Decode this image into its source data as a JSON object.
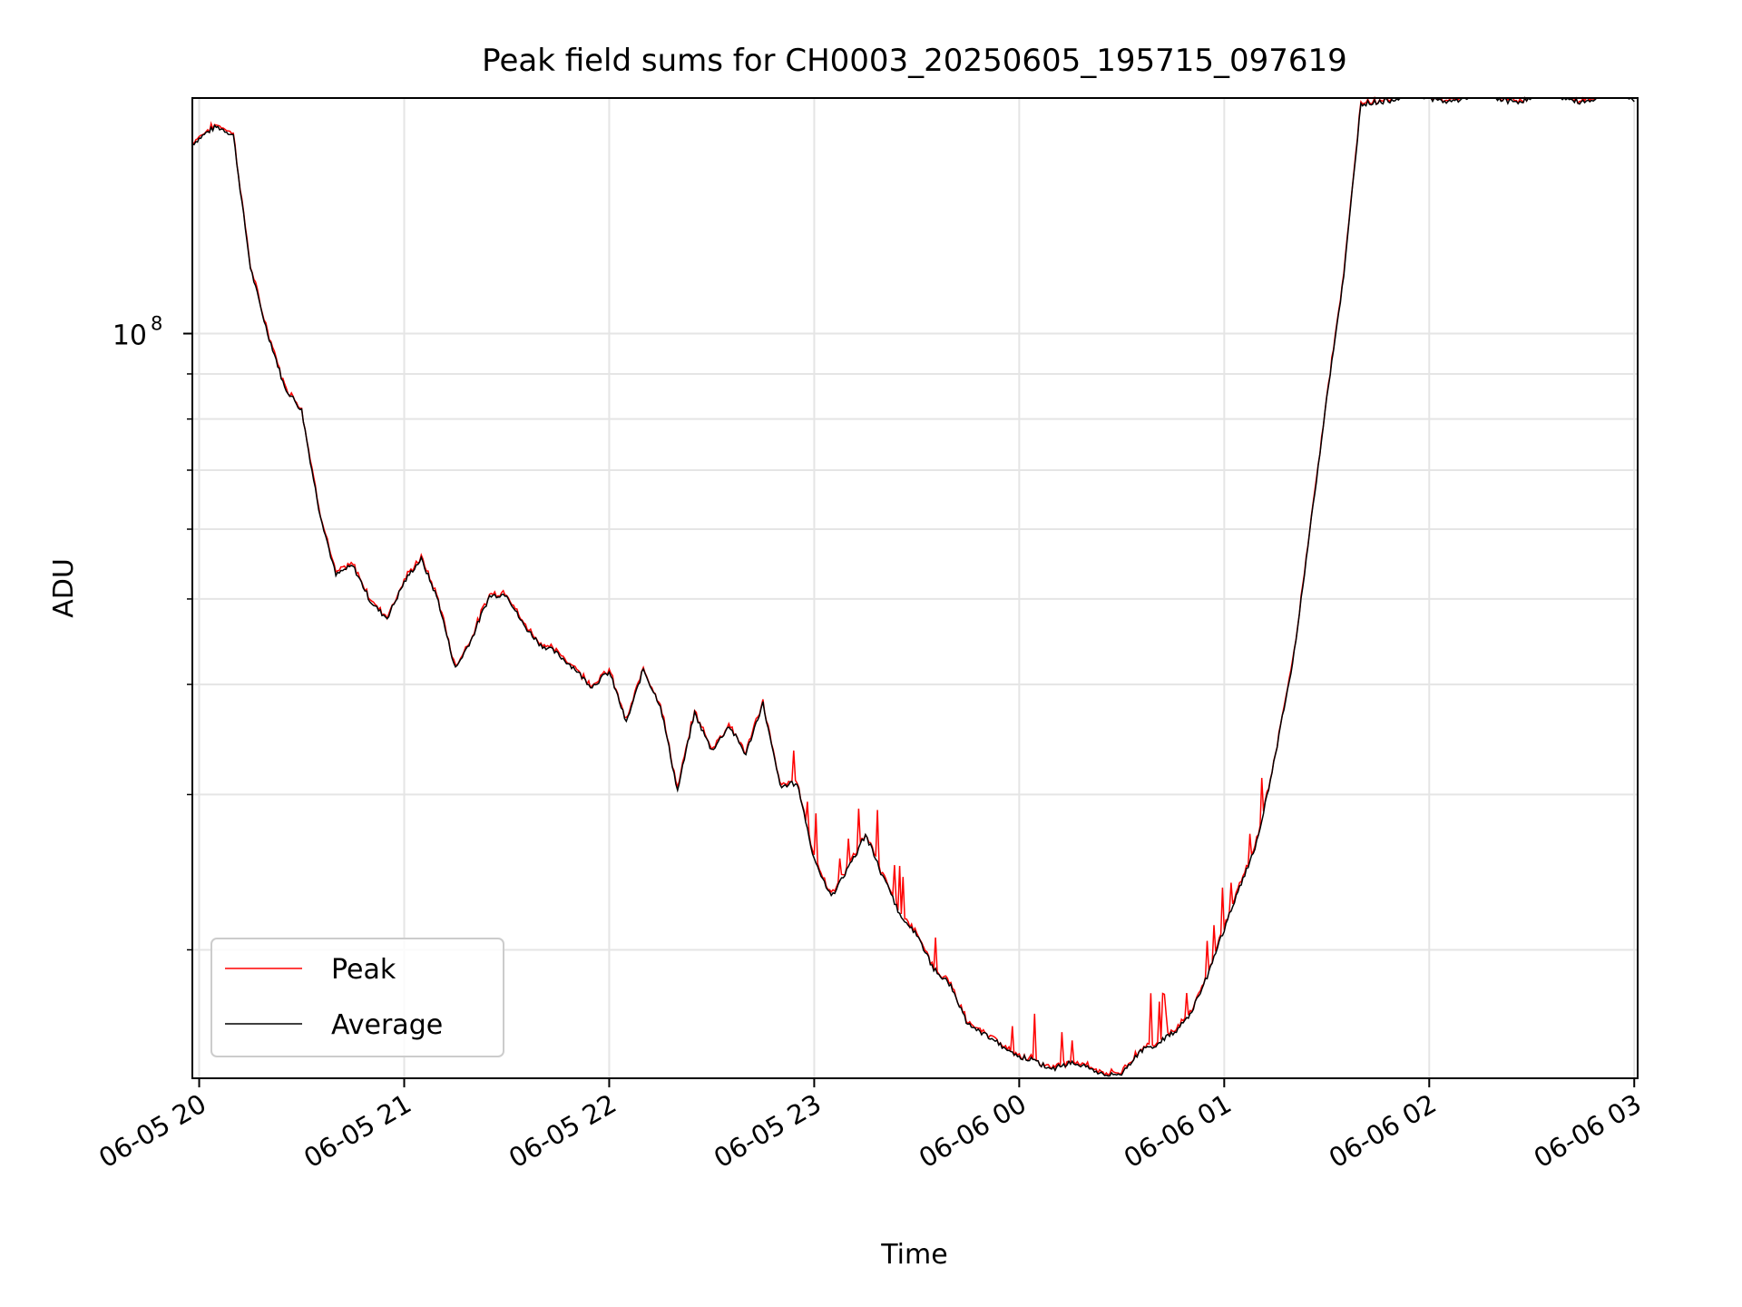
{
  "chart_data": {
    "type": "line",
    "title": "Peak field sums for CH0003_20250605_195715_097619",
    "xlabel": "Time",
    "ylabel": "ADU",
    "yscale": "log",
    "ylim": [
      14300000,
      185000000
    ],
    "xlim": [
      "06-05 19:58",
      "06-06 03:01"
    ],
    "x_ticks": [
      "06-05 20",
      "06-05 21",
      "06-05 22",
      "06-05 23",
      "06-06 00",
      "06-06 01",
      "06-06 02",
      "06-06 03"
    ],
    "y_ticks": [
      {
        "label": "10",
        "exponent": "8",
        "value": 100000000
      }
    ],
    "grid": true,
    "legend": {
      "position": "lower-left",
      "entries": [
        "Peak",
        "Average"
      ]
    },
    "series": [
      {
        "name": "Peak",
        "color": "#ff0000"
      },
      {
        "name": "Average",
        "color": "#000000"
      }
    ],
    "x": [
      "19:58",
      "20:05",
      "20:10",
      "20:15",
      "20:20",
      "20:25",
      "20:30",
      "20:35",
      "20:40",
      "20:45",
      "20:50",
      "20:55",
      "21:00",
      "21:05",
      "21:10",
      "21:15",
      "21:20",
      "21:25",
      "21:30",
      "21:35",
      "21:40",
      "21:45",
      "21:50",
      "21:55",
      "22:00",
      "22:05",
      "22:10",
      "22:15",
      "22:20",
      "22:25",
      "22:30",
      "22:35",
      "22:40",
      "22:45",
      "22:50",
      "22:55",
      "23:00",
      "23:05",
      "23:10",
      "23:15",
      "23:20",
      "23:25",
      "23:30",
      "23:35",
      "23:40",
      "23:45",
      "23:50",
      "23:55",
      "00:00",
      "00:05",
      "00:10",
      "00:15",
      "00:20",
      "00:25",
      "00:30",
      "00:35",
      "00:40",
      "00:45",
      "00:50",
      "00:55",
      "01:00",
      "01:05",
      "01:10",
      "01:15",
      "01:20",
      "01:25",
      "01:30",
      "01:35",
      "01:40",
      "01:45",
      "01:50",
      "01:55",
      "02:00",
      "02:05",
      "02:10",
      "02:15",
      "02:20",
      "02:25",
      "02:30",
      "02:35",
      "02:40",
      "02:45",
      "02:50",
      "02:55",
      "03:00"
    ],
    "average": [
      165,
      170,
      168,
      120,
      100,
      86,
      82,
      64,
      53,
      54,
      50,
      48,
      52,
      55,
      50,
      42,
      45,
      50,
      51,
      47,
      44,
      43,
      42,
      40,
      41,
      36,
      42,
      38,
      30,
      37,
      34,
      36,
      33,
      38,
      31,
      31,
      25,
      23,
      25,
      27,
      24,
      22,
      21,
      19,
      18,
      16.5,
      16.2,
      15.5,
      15,
      15,
      14.8,
      14.8,
      14.6,
      14.5,
      14.6,
      15.2,
      15.5,
      16.2,
      17,
      18.5,
      21,
      24,
      27,
      33,
      42,
      60,
      85,
      115,
      182,
      185,
      185,
      185,
      185,
      185,
      185,
      185,
      185,
      185,
      185,
      185,
      185,
      185,
      185,
      185,
      185
    ]
  }
}
